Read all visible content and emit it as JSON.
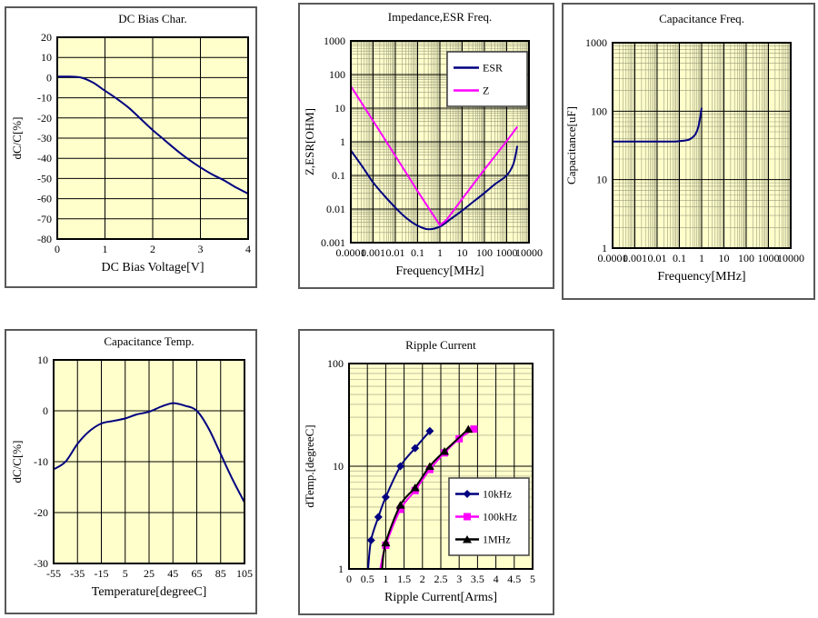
{
  "colors": {
    "plot_bg": "#ffffcc",
    "grid_major": "#000000",
    "grid_minor": "#9c9c7e",
    "plot_border": "#000000",
    "panel_border": "#595959",
    "legend_border": "#404040",
    "navy": "#000080",
    "magenta": "#ff00ff",
    "black": "#000000"
  },
  "chart_data": [
    {
      "id": "dc-bias",
      "type": "line",
      "title": "DC Bias Char.",
      "xlabel": "DC Bias Voltage[V]",
      "ylabel": "dC/C[%]",
      "xscale": "linear",
      "yscale": "linear",
      "xlim": [
        0,
        4
      ],
      "ylim": [
        -80,
        20
      ],
      "xticks": [
        0,
        1,
        2,
        3,
        4
      ],
      "xtick_labels": [
        "0",
        "1",
        "2",
        "3",
        "4"
      ],
      "yticks": [
        20,
        10,
        0,
        -10,
        -20,
        -30,
        -40,
        -50,
        -60,
        -70,
        -80
      ],
      "ytick_labels": [
        "20",
        "10",
        "0",
        "-10",
        "-20",
        "-30",
        "-40",
        "-50",
        "-60",
        "-70",
        "-80"
      ],
      "minor_grid_x": false,
      "minor_grid_y": false,
      "series": [
        {
          "name": "dC/C",
          "color": "#000080",
          "smooth": true,
          "marker": "none",
          "marker_from": 0,
          "points": [
            [
              0,
              0.5
            ],
            [
              0.25,
              0.5
            ],
            [
              0.5,
              0
            ],
            [
              0.75,
              -2.5
            ],
            [
              1,
              -6.5
            ],
            [
              1.25,
              -10.5
            ],
            [
              1.5,
              -15
            ],
            [
              1.75,
              -20.5
            ],
            [
              2,
              -26
            ],
            [
              2.25,
              -31
            ],
            [
              2.5,
              -36
            ],
            [
              2.75,
              -40.5
            ],
            [
              3,
              -44.5
            ],
            [
              3.25,
              -48
            ],
            [
              3.5,
              -51
            ],
            [
              3.75,
              -54.5
            ],
            [
              4,
              -57.5
            ]
          ]
        }
      ]
    },
    {
      "id": "impedance-esr",
      "type": "line",
      "title": "Impedance,ESR Freq.",
      "xlabel": "Frequency[MHz]",
      "ylabel": "Z,ESR[OHM]",
      "xscale": "log",
      "yscale": "log",
      "xlim": [
        0.0001,
        10000
      ],
      "ylim": [
        0.001,
        1000
      ],
      "xticks": [
        0.0001,
        0.001,
        0.01,
        0.1,
        1,
        10,
        100,
        1000,
        10000
      ],
      "xtick_labels": [
        "0.0001",
        "0.001",
        "0.01",
        "0.1",
        "1",
        "10",
        "100",
        "1000",
        "10000"
      ],
      "yticks": [
        1000,
        100,
        10,
        1,
        0.1,
        0.01,
        0.001
      ],
      "ytick_labels": [
        "1000",
        "100",
        "10",
        "1",
        "0.1",
        "0.01",
        "0.001"
      ],
      "minor_grid_x": true,
      "minor_grid_y": true,
      "legend": {
        "items": [
          "ESR",
          "Z"
        ]
      },
      "series": [
        {
          "name": "ESR",
          "color": "#000080",
          "smooth": true,
          "marker": "none",
          "marker_from": 0,
          "points": [
            [
              0.0001,
              0.55
            ],
            [
              0.0003,
              0.2
            ],
            [
              0.001,
              0.062
            ],
            [
              0.003,
              0.026
            ],
            [
              0.01,
              0.011
            ],
            [
              0.03,
              0.0055
            ],
            [
              0.1,
              0.0032
            ],
            [
              0.3,
              0.0025
            ],
            [
              1,
              0.003
            ],
            [
              3,
              0.005
            ],
            [
              10,
              0.009
            ],
            [
              30,
              0.016
            ],
            [
              100,
              0.03
            ],
            [
              300,
              0.055
            ],
            [
              1000,
              0.1
            ],
            [
              2000,
              0.22
            ],
            [
              3000,
              0.75
            ]
          ]
        },
        {
          "name": "Z",
          "color": "#ff00ff",
          "smooth": false,
          "marker": "none",
          "marker_from": 0,
          "points": [
            [
              0.0001,
              45
            ],
            [
              0.001,
              4.2
            ],
            [
              0.01,
              0.38
            ],
            [
              0.1,
              0.034
            ],
            [
              1,
              0.0033
            ],
            [
              2,
              0.0048
            ],
            [
              10,
              0.02
            ],
            [
              100,
              0.15
            ],
            [
              1000,
              1.05
            ],
            [
              3000,
              2.8
            ]
          ]
        }
      ]
    },
    {
      "id": "cap-freq",
      "type": "line",
      "title": "Capacitance Freq.",
      "xlabel": "Frequency[MHz]",
      "ylabel": "Capacitance[uF]",
      "xscale": "log",
      "yscale": "log",
      "xlim": [
        0.0001,
        10000
      ],
      "ylim": [
        1,
        1000
      ],
      "xticks": [
        0.0001,
        0.001,
        0.01,
        0.1,
        1,
        10,
        100,
        1000,
        10000
      ],
      "xtick_labels": [
        "0.0001",
        "0.001",
        "0.01",
        "0.1",
        "1",
        "10",
        "100",
        "1000",
        "10000"
      ],
      "yticks": [
        1000,
        100,
        10,
        1
      ],
      "ytick_labels": [
        "1000",
        "100",
        "10",
        "1"
      ],
      "minor_grid_x": true,
      "minor_grid_y": true,
      "series": [
        {
          "name": "Capacitance",
          "color": "#000080",
          "smooth": true,
          "marker": "none",
          "marker_from": 0,
          "points": [
            [
              0.0001,
              36
            ],
            [
              0.001,
              36
            ],
            [
              0.01,
              36
            ],
            [
              0.05,
              36
            ],
            [
              0.1,
              36.5
            ],
            [
              0.2,
              37.5
            ],
            [
              0.3,
              39
            ],
            [
              0.5,
              45
            ],
            [
              0.7,
              58
            ],
            [
              0.85,
              80
            ],
            [
              1,
              112
            ]
          ]
        }
      ]
    },
    {
      "id": "cap-temp",
      "type": "line",
      "title": "Capacitance Temp.",
      "xlabel": "Temperature[degreeC]",
      "ylabel": "dC/C[%]",
      "xscale": "linear",
      "yscale": "linear",
      "xlim": [
        -55,
        105
      ],
      "ylim": [
        -30,
        10
      ],
      "xticks": [
        -55,
        -35,
        -15,
        5,
        25,
        45,
        65,
        85,
        105
      ],
      "xtick_labels": [
        "-55",
        "-35",
        "-15",
        "5",
        "25",
        "45",
        "65",
        "85",
        "105"
      ],
      "yticks": [
        10,
        0,
        -10,
        -20,
        -30
      ],
      "ytick_labels": [
        "10",
        "0",
        "-10",
        "-20",
        "-30"
      ],
      "minor_grid_x": false,
      "minor_grid_y": false,
      "series": [
        {
          "name": "dC/C",
          "color": "#000080",
          "smooth": true,
          "marker": "none",
          "marker_from": 0,
          "points": [
            [
              -55,
              -11.5
            ],
            [
              -45,
              -10
            ],
            [
              -35,
              -6.5
            ],
            [
              -25,
              -4
            ],
            [
              -15,
              -2.5
            ],
            [
              -5,
              -2
            ],
            [
              5,
              -1.5
            ],
            [
              15,
              -0.7
            ],
            [
              25,
              -0.2
            ],
            [
              35,
              0.8
            ],
            [
              45,
              1.5
            ],
            [
              55,
              1
            ],
            [
              65,
              0
            ],
            [
              75,
              -3.5
            ],
            [
              85,
              -8.5
            ],
            [
              95,
              -13.5
            ],
            [
              105,
              -18
            ]
          ]
        }
      ]
    },
    {
      "id": "ripple-current",
      "type": "line",
      "title": "Ripple Current",
      "xlabel": "Ripple Current[Arms]",
      "ylabel": "dTemp.[degreeC]",
      "xscale": "linear",
      "yscale": "log",
      "xlim": [
        0,
        5
      ],
      "ylim": [
        1,
        100
      ],
      "xticks": [
        0,
        0.5,
        1,
        1.5,
        2,
        2.5,
        3,
        3.5,
        4,
        4.5,
        5
      ],
      "xtick_labels": [
        "0",
        "0.5",
        "1",
        "1.5",
        "2",
        "2.5",
        "3",
        "3.5",
        "4",
        "4.5",
        "5"
      ],
      "yticks": [
        100,
        10,
        1
      ],
      "ytick_labels": [
        "100",
        "10",
        "1"
      ],
      "minor_grid_x": false,
      "minor_grid_y": true,
      "legend": {
        "items": [
          "10kHz",
          "100kHz",
          "1MHz"
        ]
      },
      "series": [
        {
          "name": "10kHz",
          "color": "#000080",
          "smooth": true,
          "marker": "diamond",
          "marker_from": 1,
          "points": [
            [
              0.52,
              1
            ],
            [
              0.6,
              1.9
            ],
            [
              0.8,
              3.2
            ],
            [
              1.0,
              5
            ],
            [
              1.4,
              10
            ],
            [
              1.8,
              15
            ],
            [
              2.2,
              22
            ]
          ]
        },
        {
          "name": "100kHz",
          "color": "#ff00ff",
          "smooth": true,
          "marker": "square",
          "marker_from": 1,
          "points": [
            [
              0.85,
              1
            ],
            [
              1.0,
              1.7
            ],
            [
              1.4,
              3.8
            ],
            [
              1.8,
              5.8
            ],
            [
              2.2,
              9.3
            ],
            [
              2.6,
              13.5
            ],
            [
              3.0,
              18.5
            ],
            [
              3.4,
              23
            ]
          ]
        },
        {
          "name": "1MHz",
          "color": "#000000",
          "smooth": true,
          "marker": "triangle",
          "marker_from": 1,
          "points": [
            [
              0.9,
              1
            ],
            [
              1.0,
              1.8
            ],
            [
              1.4,
              4.2
            ],
            [
              1.8,
              6.2
            ],
            [
              2.2,
              10
            ],
            [
              2.6,
              14
            ],
            [
              3.25,
              23
            ]
          ]
        }
      ]
    }
  ]
}
